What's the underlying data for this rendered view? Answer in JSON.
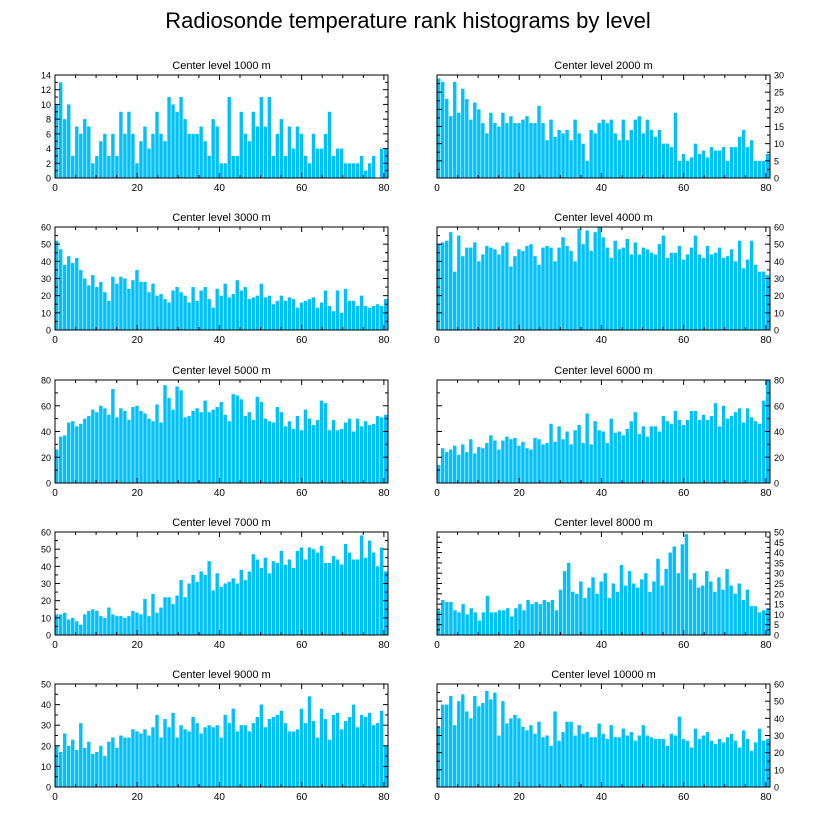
{
  "title": "Radiosonde temperature rank histograms by level",
  "bar_color": "#00c0ff",
  "chart_data": [
    {
      "type": "bar",
      "title": "Center level 1000 m",
      "xlabel": "",
      "ylabel": "",
      "xlim": [
        0,
        81
      ],
      "ylim": [
        0,
        14
      ],
      "yticks": [
        0,
        2,
        4,
        6,
        8,
        10,
        12,
        14
      ],
      "xticks": [
        0,
        20,
        40,
        60,
        80
      ],
      "y_axis_side": "left",
      "values": [
        10,
        13,
        8,
        10,
        3,
        7,
        6,
        8,
        7,
        2,
        3,
        5,
        6,
        3,
        6,
        3,
        9,
        6,
        9,
        6,
        2,
        5,
        7,
        4,
        6,
        9,
        6,
        5,
        11,
        10,
        9,
        11,
        8,
        6,
        6,
        6,
        7,
        5,
        3,
        8,
        7,
        2,
        2,
        11,
        3,
        3,
        9,
        6,
        5,
        9,
        7,
        11,
        7,
        11,
        3,
        6,
        8,
        3,
        7,
        4,
        7,
        6,
        3,
        2,
        6,
        4,
        4,
        6,
        9,
        3,
        4,
        4,
        2,
        2,
        2,
        2,
        3,
        1,
        2,
        3,
        0,
        4,
        4
      ]
    },
    {
      "type": "bar",
      "title": "Center level 2000 m",
      "xlabel": "",
      "ylabel": "",
      "xlim": [
        0,
        81
      ],
      "ylim": [
        0,
        30
      ],
      "yticks": [
        0,
        5,
        10,
        15,
        20,
        25,
        30
      ],
      "xticks": [
        0,
        20,
        40,
        60,
        80
      ],
      "y_axis_side": "right",
      "values": [
        29,
        28,
        23,
        18,
        28,
        19,
        26,
        23,
        17,
        22,
        20,
        16,
        13,
        19,
        16,
        15,
        19,
        16,
        18,
        16,
        16,
        17,
        18,
        16,
        16,
        21,
        16,
        11,
        17,
        12,
        14,
        13,
        14,
        11,
        17,
        13,
        10,
        5,
        14,
        13,
        16,
        17,
        16,
        17,
        13,
        11,
        17,
        11,
        14,
        17,
        18,
        13,
        17,
        14,
        12,
        14,
        10,
        10,
        9,
        19,
        5,
        7,
        5,
        6,
        10,
        7,
        8,
        6,
        9,
        8,
        8,
        9,
        5,
        9,
        9,
        12,
        14,
        9,
        11,
        5,
        5,
        5,
        7
      ]
    },
    {
      "type": "bar",
      "title": "Center level 3000 m",
      "xlabel": "",
      "ylabel": "",
      "xlim": [
        0,
        81
      ],
      "ylim": [
        0,
        60
      ],
      "yticks": [
        0,
        10,
        20,
        30,
        40,
        50,
        60
      ],
      "xticks": [
        0,
        20,
        40,
        60,
        80
      ],
      "y_axis_side": "left",
      "values": [
        52,
        47,
        38,
        43,
        39,
        42,
        35,
        30,
        26,
        32,
        25,
        28,
        22,
        17,
        31,
        27,
        31,
        30,
        24,
        29,
        35,
        28,
        28,
        22,
        27,
        20,
        21,
        18,
        16,
        23,
        25,
        22,
        20,
        16,
        25,
        17,
        23,
        25,
        18,
        13,
        24,
        20,
        27,
        19,
        21,
        29,
        23,
        25,
        18,
        19,
        20,
        27,
        19,
        20,
        15,
        17,
        20,
        17,
        19,
        18,
        13,
        16,
        17,
        18,
        19,
        13,
        16,
        23,
        14,
        11,
        23,
        10,
        24,
        17,
        17,
        14,
        20,
        14,
        13,
        14,
        15,
        14,
        18
      ]
    },
    {
      "type": "bar",
      "title": "Center level 4000 m",
      "xlabel": "",
      "ylabel": "",
      "xlim": [
        0,
        81
      ],
      "ylim": [
        0,
        60
      ],
      "yticks": [
        0,
        10,
        20,
        30,
        40,
        50,
        60
      ],
      "xticks": [
        0,
        20,
        40,
        60,
        80
      ],
      "y_axis_side": "right",
      "values": [
        50,
        51,
        52,
        57,
        34,
        55,
        43,
        48,
        48,
        51,
        40,
        44,
        49,
        48,
        47,
        44,
        49,
        51,
        37,
        43,
        47,
        46,
        49,
        50,
        43,
        38,
        48,
        49,
        48,
        40,
        48,
        54,
        49,
        46,
        40,
        59,
        50,
        58,
        46,
        57,
        62,
        54,
        48,
        42,
        52,
        47,
        48,
        53,
        44,
        51,
        44,
        48,
        47,
        45,
        44,
        50,
        55,
        42,
        45,
        45,
        49,
        41,
        44,
        48,
        55,
        44,
        42,
        49,
        44,
        45,
        48,
        42,
        43,
        47,
        40,
        52,
        36,
        41,
        52,
        38,
        34,
        34,
        32
      ]
    },
    {
      "type": "bar",
      "title": "Center level 5000 m",
      "xlabel": "",
      "ylabel": "",
      "xlim": [
        0,
        81
      ],
      "ylim": [
        0,
        80
      ],
      "yticks": [
        0,
        20,
        40,
        60,
        80
      ],
      "xticks": [
        0,
        20,
        40,
        60,
        80
      ],
      "y_axis_side": "left",
      "values": [
        26,
        36,
        37,
        47,
        48,
        44,
        46,
        50,
        52,
        57,
        55,
        60,
        58,
        53,
        73,
        51,
        58,
        56,
        49,
        59,
        60,
        56,
        54,
        50,
        48,
        61,
        47,
        76,
        66,
        57,
        75,
        72,
        51,
        52,
        56,
        58,
        55,
        64,
        55,
        57,
        59,
        63,
        53,
        48,
        69,
        68,
        65,
        52,
        55,
        49,
        67,
        63,
        50,
        48,
        47,
        59,
        55,
        44,
        48,
        42,
        52,
        41,
        57,
        50,
        45,
        49,
        64,
        62,
        41,
        49,
        41,
        42,
        47,
        50,
        40,
        50,
        44,
        48,
        45,
        46,
        52,
        51,
        53
      ]
    },
    {
      "type": "bar",
      "title": "Center level 6000 m",
      "xlabel": "",
      "ylabel": "",
      "xlim": [
        0,
        81
      ],
      "ylim": [
        0,
        80
      ],
      "yticks": [
        0,
        20,
        40,
        60,
        80
      ],
      "xticks": [
        0,
        20,
        40,
        60,
        80
      ],
      "y_axis_side": "right",
      "values": [
        14,
        27,
        24,
        26,
        29,
        22,
        30,
        24,
        34,
        23,
        28,
        27,
        31,
        37,
        33,
        26,
        33,
        36,
        34,
        35,
        29,
        32,
        27,
        26,
        35,
        34,
        30,
        31,
        46,
        32,
        44,
        34,
        40,
        30,
        41,
        45,
        31,
        54,
        30,
        48,
        41,
        40,
        31,
        50,
        39,
        40,
        37,
        42,
        48,
        55,
        38,
        44,
        36,
        44,
        44,
        40,
        52,
        48,
        46,
        56,
        49,
        45,
        49,
        56,
        56,
        49,
        53,
        49,
        52,
        62,
        44,
        60,
        50,
        52,
        55,
        58,
        47,
        58,
        51,
        48,
        46,
        64,
        82
      ]
    },
    {
      "type": "bar",
      "title": "Center level 7000 m",
      "xlabel": "",
      "ylabel": "",
      "xlim": [
        0,
        81
      ],
      "ylim": [
        0,
        60
      ],
      "yticks": [
        0,
        10,
        20,
        30,
        40,
        50,
        60
      ],
      "xticks": [
        0,
        20,
        40,
        60,
        80
      ],
      "y_axis_side": "left",
      "values": [
        12,
        12,
        13,
        9,
        10,
        8,
        6,
        12,
        14,
        15,
        14,
        11,
        10,
        16,
        12,
        11,
        11,
        10,
        11,
        14,
        13,
        12,
        21,
        11,
        24,
        13,
        16,
        22,
        22,
        18,
        23,
        32,
        22,
        30,
        35,
        31,
        37,
        35,
        43,
        26,
        36,
        28,
        30,
        31,
        33,
        30,
        38,
        32,
        37,
        47,
        44,
        39,
        45,
        36,
        43,
        42,
        49,
        41,
        44,
        39,
        49,
        51,
        44,
        51,
        50,
        48,
        52,
        42,
        42,
        46,
        44,
        41,
        53,
        48,
        44,
        44,
        58,
        45,
        55,
        48,
        40,
        51,
        37
      ]
    },
    {
      "type": "bar",
      "title": "Center level 8000 m",
      "xlabel": "",
      "ylabel": "",
      "xlim": [
        0,
        81
      ],
      "ylim": [
        0,
        50
      ],
      "yticks": [
        0,
        5,
        10,
        15,
        20,
        25,
        30,
        35,
        40,
        45,
        50
      ],
      "xticks": [
        0,
        20,
        40,
        60,
        80
      ],
      "y_axis_side": "right",
      "values": [
        12,
        17,
        16,
        16,
        12,
        11,
        15,
        10,
        13,
        11,
        7,
        11,
        19,
        11,
        11,
        12,
        12,
        13,
        9,
        13,
        15,
        12,
        17,
        15,
        16,
        15,
        17,
        16,
        17,
        12,
        22,
        31,
        35,
        21,
        20,
        26,
        18,
        23,
        28,
        20,
        26,
        30,
        18,
        25,
        21,
        34,
        24,
        31,
        25,
        23,
        27,
        30,
        21,
        26,
        37,
        24,
        32,
        40,
        43,
        30,
        44,
        49,
        27,
        30,
        23,
        24,
        31,
        26,
        21,
        28,
        22,
        32,
        24,
        20,
        25,
        17,
        22,
        14,
        14,
        11,
        12,
        13
      ]
    },
    {
      "type": "bar",
      "title": "Center level 9000 m",
      "xlabel": "",
      "ylabel": "",
      "xlim": [
        0,
        81
      ],
      "ylim": [
        0,
        50
      ],
      "yticks": [
        0,
        10,
        20,
        30,
        40,
        50
      ],
      "xticks": [
        0,
        20,
        40,
        60,
        80
      ],
      "y_axis_side": "left",
      "values": [
        20,
        17,
        26,
        20,
        23,
        18,
        31,
        19,
        22,
        16,
        17,
        20,
        15,
        22,
        24,
        19,
        25,
        24,
        24,
        28,
        27,
        26,
        28,
        25,
        29,
        35,
        24,
        33,
        29,
        36,
        24,
        30,
        28,
        27,
        34,
        31,
        26,
        29,
        30,
        29,
        30,
        24,
        35,
        31,
        38,
        27,
        30,
        30,
        27,
        31,
        34,
        40,
        29,
        33,
        34,
        35,
        37,
        31,
        27,
        27,
        28,
        38,
        31,
        44,
        32,
        24,
        38,
        33,
        23,
        35,
        36,
        28,
        32,
        34,
        40,
        29,
        35,
        34,
        36,
        30,
        31,
        37,
        20
      ]
    },
    {
      "type": "bar",
      "title": "Center level 10000 m",
      "xlabel": "",
      "ylabel": "",
      "xlim": [
        0,
        81
      ],
      "ylim": [
        0,
        60
      ],
      "yticks": [
        0,
        10,
        20,
        30,
        40,
        50,
        60
      ],
      "xticks": [
        0,
        20,
        40,
        60,
        80
      ],
      "y_axis_side": "right",
      "values": [
        35,
        48,
        48,
        53,
        36,
        50,
        54,
        44,
        40,
        53,
        47,
        49,
        56,
        51,
        55,
        30,
        50,
        37,
        40,
        42,
        40,
        35,
        33,
        36,
        31,
        38,
        29,
        30,
        24,
        44,
        27,
        32,
        38,
        38,
        30,
        36,
        31,
        32,
        29,
        29,
        37,
        31,
        28,
        36,
        29,
        29,
        34,
        30,
        32,
        27,
        30,
        36,
        30,
        29,
        28,
        28,
        28,
        24,
        31,
        30,
        41,
        28,
        27,
        23,
        34,
        28,
        30,
        32,
        27,
        25,
        28,
        26,
        29,
        31,
        27,
        23,
        33,
        28,
        21,
        26,
        34,
        27,
        28
      ]
    }
  ]
}
